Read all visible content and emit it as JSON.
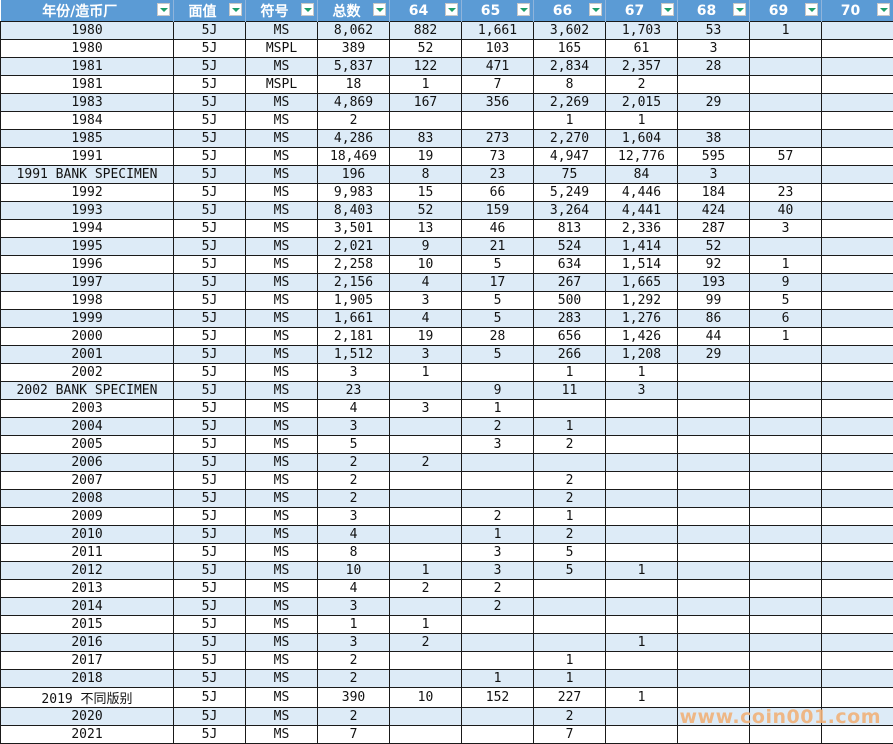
{
  "headers": [
    "年份/造币厂",
    "面值",
    "符号",
    "总数",
    "64",
    "65",
    "66",
    "67",
    "68",
    "69",
    "70"
  ],
  "rows": [
    [
      "1980",
      "5J",
      "MS",
      "8,062",
      "882",
      "1,661",
      "3,602",
      "1,703",
      "53",
      "1",
      ""
    ],
    [
      "1980",
      "5J",
      "MSPL",
      "389",
      "52",
      "103",
      "165",
      "61",
      "3",
      "",
      ""
    ],
    [
      "1981",
      "5J",
      "MS",
      "5,837",
      "122",
      "471",
      "2,834",
      "2,357",
      "28",
      "",
      ""
    ],
    [
      "1981",
      "5J",
      "MSPL",
      "18",
      "1",
      "7",
      "8",
      "2",
      "",
      "",
      ""
    ],
    [
      "1983",
      "5J",
      "MS",
      "4,869",
      "167",
      "356",
      "2,269",
      "2,015",
      "29",
      "",
      ""
    ],
    [
      "1984",
      "5J",
      "MS",
      "2",
      "",
      "",
      "1",
      "1",
      "",
      "",
      ""
    ],
    [
      "1985",
      "5J",
      "MS",
      "4,286",
      "83",
      "273",
      "2,270",
      "1,604",
      "38",
      "",
      ""
    ],
    [
      "1991",
      "5J",
      "MS",
      "18,469",
      "19",
      "73",
      "4,947",
      "12,776",
      "595",
      "57",
      ""
    ],
    [
      "1991 BANK SPECIMEN",
      "5J",
      "MS",
      "196",
      "8",
      "23",
      "75",
      "84",
      "3",
      "",
      ""
    ],
    [
      "1992",
      "5J",
      "MS",
      "9,983",
      "15",
      "66",
      "5,249",
      "4,446",
      "184",
      "23",
      ""
    ],
    [
      "1993",
      "5J",
      "MS",
      "8,403",
      "52",
      "159",
      "3,264",
      "4,441",
      "424",
      "40",
      ""
    ],
    [
      "1994",
      "5J",
      "MS",
      "3,501",
      "13",
      "46",
      "813",
      "2,336",
      "287",
      "3",
      ""
    ],
    [
      "1995",
      "5J",
      "MS",
      "2,021",
      "9",
      "21",
      "524",
      "1,414",
      "52",
      "",
      ""
    ],
    [
      "1996",
      "5J",
      "MS",
      "2,258",
      "10",
      "5",
      "634",
      "1,514",
      "92",
      "1",
      ""
    ],
    [
      "1997",
      "5J",
      "MS",
      "2,156",
      "4",
      "17",
      "267",
      "1,665",
      "193",
      "9",
      ""
    ],
    [
      "1998",
      "5J",
      "MS",
      "1,905",
      "3",
      "5",
      "500",
      "1,292",
      "99",
      "5",
      ""
    ],
    [
      "1999",
      "5J",
      "MS",
      "1,661",
      "4",
      "5",
      "283",
      "1,276",
      "86",
      "6",
      ""
    ],
    [
      "2000",
      "5J",
      "MS",
      "2,181",
      "19",
      "28",
      "656",
      "1,426",
      "44",
      "1",
      ""
    ],
    [
      "2001",
      "5J",
      "MS",
      "1,512",
      "3",
      "5",
      "266",
      "1,208",
      "29",
      "",
      ""
    ],
    [
      "2002",
      "5J",
      "MS",
      "3",
      "1",
      "",
      "1",
      "1",
      "",
      "",
      ""
    ],
    [
      "2002 BANK SPECIMEN",
      "5J",
      "MS",
      "23",
      "",
      "9",
      "11",
      "3",
      "",
      "",
      ""
    ],
    [
      "2003",
      "5J",
      "MS",
      "4",
      "3",
      "1",
      "",
      "",
      "",
      "",
      ""
    ],
    [
      "2004",
      "5J",
      "MS",
      "3",
      "",
      "2",
      "1",
      "",
      "",
      "",
      ""
    ],
    [
      "2005",
      "5J",
      "MS",
      "5",
      "",
      "3",
      "2",
      "",
      "",
      "",
      ""
    ],
    [
      "2006",
      "5J",
      "MS",
      "2",
      "2",
      "",
      "",
      "",
      "",
      "",
      ""
    ],
    [
      "2007",
      "5J",
      "MS",
      "2",
      "",
      "",
      "2",
      "",
      "",
      "",
      ""
    ],
    [
      "2008",
      "5J",
      "MS",
      "2",
      "",
      "",
      "2",
      "",
      "",
      "",
      ""
    ],
    [
      "2009",
      "5J",
      "MS",
      "3",
      "",
      "2",
      "1",
      "",
      "",
      "",
      ""
    ],
    [
      "2010",
      "5J",
      "MS",
      "4",
      "",
      "1",
      "2",
      "",
      "",
      "",
      ""
    ],
    [
      "2011",
      "5J",
      "MS",
      "8",
      "",
      "3",
      "5",
      "",
      "",
      "",
      ""
    ],
    [
      "2012",
      "5J",
      "MS",
      "10",
      "1",
      "3",
      "5",
      "1",
      "",
      "",
      ""
    ],
    [
      "2013",
      "5J",
      "MS",
      "4",
      "2",
      "2",
      "",
      "",
      "",
      "",
      ""
    ],
    [
      "2014",
      "5J",
      "MS",
      "3",
      "",
      "2",
      "",
      "",
      "",
      "",
      ""
    ],
    [
      "2015",
      "5J",
      "MS",
      "1",
      "1",
      "",
      "",
      "",
      "",
      "",
      ""
    ],
    [
      "2016",
      "5J",
      "MS",
      "3",
      "2",
      "",
      "",
      "1",
      "",
      "",
      ""
    ],
    [
      "2017",
      "5J",
      "MS",
      "2",
      "",
      "",
      "1",
      "",
      "",
      "",
      ""
    ],
    [
      "2018",
      "5J",
      "MS",
      "2",
      "",
      "1",
      "1",
      "",
      "",
      "",
      ""
    ],
    [
      "2019 不同版别",
      "5J",
      "MS",
      "390",
      "10",
      "152",
      "227",
      "1",
      "",
      "",
      ""
    ],
    [
      "2020",
      "5J",
      "MS",
      "2",
      "",
      "",
      "2",
      "",
      "",
      "",
      ""
    ],
    [
      "2021",
      "5J",
      "MS",
      "7",
      "",
      "",
      "7",
      "",
      "",
      "",
      ""
    ]
  ],
  "colors": {
    "header": "#5B9BD5",
    "band": "#DDEBF7",
    "filter_arrow": "#1E9E6A",
    "watermark": "#F0B27A"
  },
  "watermark": "www.coin001.com"
}
